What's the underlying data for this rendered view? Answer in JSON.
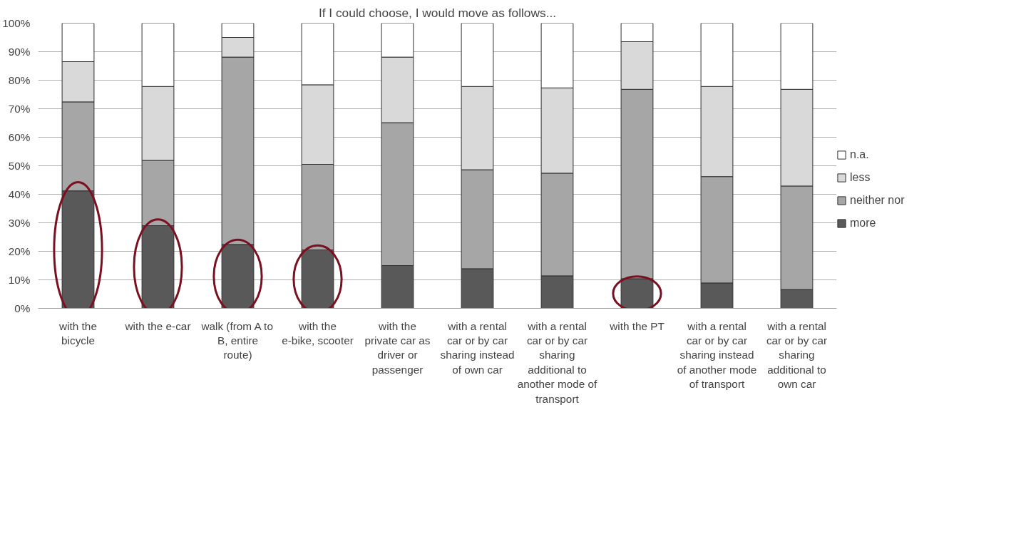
{
  "chart_data": {
    "type": "bar",
    "title": "If I could choose, I would move as follows...",
    "stacked": true,
    "categories": [
      "with the bicycle",
      "with the e-car",
      "walk (from A to B, entire route)",
      "with the e-bike, scooter",
      "with the private car as driver or passenger",
      "with a rental car or by car sharing instead of own car",
      "with a rental car or by car sharing additional to another mode of transport",
      "with the PT",
      "with a rental car or by car sharing instead of another mode of transport",
      "with a rental car or by car sharing additional to own car"
    ],
    "series": [
      {
        "name": "more",
        "color": "#595959",
        "values": [
          41.2,
          29.0,
          22.4,
          20.5,
          15.0,
          13.9,
          11.4,
          10.4,
          8.9,
          6.6
        ]
      },
      {
        "name": "neither nor",
        "color": "#a6a6a6",
        "values": [
          31.2,
          22.9,
          65.7,
          30.0,
          50.1,
          34.7,
          36.0,
          66.4,
          37.3,
          36.3
        ]
      },
      {
        "name": "less",
        "color": "#d9d9d9",
        "values": [
          14.1,
          25.9,
          6.9,
          27.9,
          23.0,
          29.2,
          29.9,
          16.7,
          31.6,
          33.9
        ]
      },
      {
        "name": "n.a.",
        "color": "#ffffff",
        "values": [
          13.5,
          22.2,
          5.0,
          21.6,
          11.9,
          22.2,
          22.7,
          6.5,
          22.2,
          23.2
        ]
      }
    ],
    "ylim": [
      0,
      100
    ],
    "yticks": [
      {
        "value": 0,
        "label": "0%"
      },
      {
        "value": 10,
        "label": "10%"
      },
      {
        "value": 20,
        "label": "20%"
      },
      {
        "value": 30,
        "label": "30%"
      },
      {
        "value": 40,
        "label": "40%"
      },
      {
        "value": 50,
        "label": "50%"
      },
      {
        "value": 60,
        "label": "60%"
      },
      {
        "value": 70,
        "label": "70%"
      },
      {
        "value": 80,
        "label": "80%"
      },
      {
        "value": 90,
        "label": "90%"
      },
      {
        "value": 100,
        "label": "100%"
      }
    ],
    "grid": "y",
    "legend": "right"
  }
}
